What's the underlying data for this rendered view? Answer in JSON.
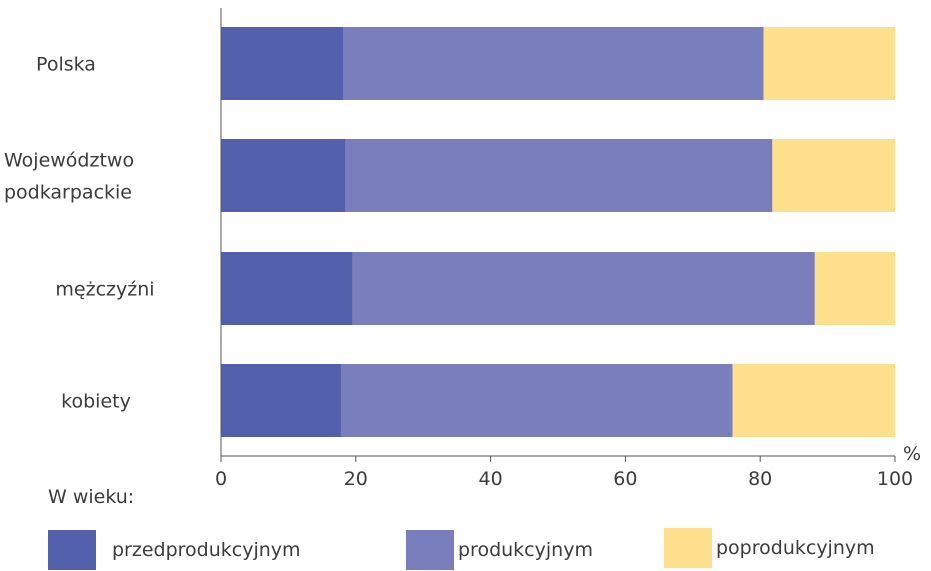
{
  "chart_data": {
    "type": "bar",
    "orientation": "horizontal",
    "stacked": true,
    "categories": [
      [
        "Polska"
      ],
      [
        "Województwo",
        "podkarpackie"
      ],
      [
        "mężczyźni"
      ],
      [
        "kobiety"
      ]
    ],
    "series": [
      {
        "name": "przedprodukcyjnym",
        "color": "#5360ac",
        "values": [
          18.1,
          18.5,
          19.5,
          17.8
        ]
      },
      {
        "name": "produkcyjnym",
        "color": "#797ebd",
        "values": [
          62.4,
          63.3,
          68.6,
          58.1
        ]
      },
      {
        "name": "poprodukcyjnym",
        "color": "#fedf8b",
        "values": [
          19.5,
          18.2,
          11.9,
          24.1
        ]
      }
    ],
    "xlim": [
      0,
      100
    ],
    "xticks": [
      "0",
      "20",
      "40",
      "60",
      "80",
      "100"
    ],
    "xunit": "%",
    "grid": false
  },
  "legend": {
    "title": "W wieku:",
    "items": [
      {
        "label": "przedprodukcyjnym",
        "color": "#5360ac"
      },
      {
        "label": "produkcyjnym",
        "color": "#797ebd"
      },
      {
        "label": "poprodukcyjnym",
        "color": "#fedf8b"
      }
    ]
  }
}
